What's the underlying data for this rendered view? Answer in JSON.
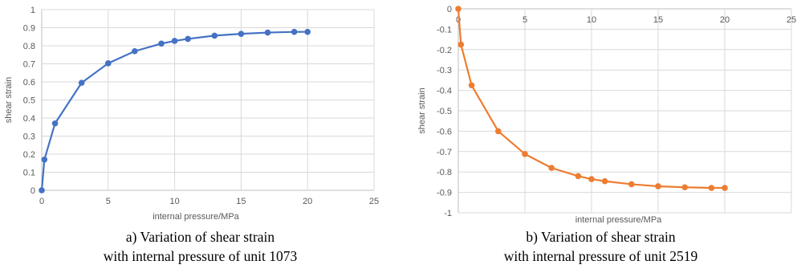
{
  "chart_data": [
    {
      "type": "line",
      "xlabel": "internal pressure/MPa",
      "ylabel": "shear strain",
      "xlim": [
        0,
        25
      ],
      "ylim": [
        0,
        1
      ],
      "xticks": [
        0,
        5,
        10,
        15,
        20,
        25
      ],
      "yticks": [
        0,
        0.1,
        0.2,
        0.3,
        0.4,
        0.5,
        0.6,
        0.7,
        0.8,
        0.9,
        1
      ],
      "ytick_labels": [
        "0",
        "0.1",
        "0.2",
        "0.3",
        "0.4",
        "0.5",
        "0.6",
        "0.7",
        "0.8",
        "0.9",
        "1"
      ],
      "grid": true,
      "color": "#4472c4",
      "x": [
        0,
        0.2,
        1,
        3,
        5,
        7,
        9,
        10,
        11,
        13,
        15,
        17,
        19,
        20
      ],
      "y": [
        0,
        0.17,
        0.37,
        0.595,
        0.703,
        0.77,
        0.812,
        0.827,
        0.838,
        0.856,
        0.866,
        0.873,
        0.877,
        0.877
      ],
      "caption_line1": "a) Variation of shear strain",
      "caption_line2": "with internal pressure of unit 1073"
    },
    {
      "type": "line",
      "xlabel": "internal pressure/MPa",
      "ylabel": "shear strain",
      "xlim": [
        0,
        25
      ],
      "ylim": [
        -1,
        0
      ],
      "xticks": [
        0,
        5,
        10,
        15,
        20,
        25
      ],
      "yticks": [
        0,
        -0.1,
        -0.2,
        -0.3,
        -0.4,
        -0.5,
        -0.6,
        -0.7,
        -0.8,
        -0.9,
        -1
      ],
      "ytick_labels": [
        "0",
        "-0.1",
        "-0.2",
        "-0.3",
        "-0.4",
        "-0.5",
        "-0.6",
        "-0.7",
        "-0.8",
        "-0.9",
        "-1"
      ],
      "grid": true,
      "color": "#ed7d31",
      "x": [
        0,
        0.2,
        1,
        3,
        5,
        7,
        9,
        10,
        11,
        13,
        15,
        17,
        19,
        20
      ],
      "y": [
        0,
        -0.175,
        -0.375,
        -0.6,
        -0.712,
        -0.78,
        -0.82,
        -0.835,
        -0.845,
        -0.86,
        -0.87,
        -0.875,
        -0.878,
        -0.878
      ],
      "caption_line1": "b) Variation of shear strain",
      "caption_line2": "with internal pressure of unit 2519"
    }
  ]
}
